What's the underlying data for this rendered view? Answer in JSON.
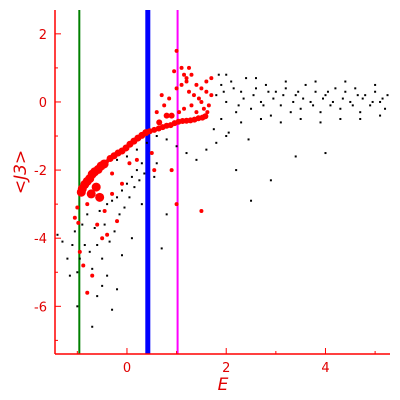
{
  "chart_data": {
    "type": "scatter",
    "xlabel": "E",
    "ylabel": "<J3>",
    "xlim": [
      -1.45,
      5.3
    ],
    "ylim": [
      -7.4,
      2.7
    ],
    "x_ticks": [
      0,
      2,
      4
    ],
    "y_ticks": [
      2,
      0,
      -2,
      -4,
      -6
    ],
    "x_tick_labels": [
      "0",
      "2",
      "4"
    ],
    "y_tick_labels": [
      "2",
      "0",
      "-2",
      "-4",
      "-6"
    ],
    "colors": {
      "axis": "#ff0000",
      "highlight_points": "#ff0000",
      "background_points": "#000000",
      "vline_green": "#008000",
      "vline_blue": "#0000ff",
      "vline_magenta": "#ff00ff"
    },
    "vertical_lines": [
      {
        "x": -0.96,
        "color": "#008000",
        "width": "thin"
      },
      {
        "x": 0.42,
        "color": "#0000ff",
        "width": "thick"
      },
      {
        "x": 1.02,
        "color": "#ff00ff",
        "width": "thin"
      }
    ],
    "highlight_points": [
      [
        -0.92,
        -2.65
      ],
      [
        -0.9,
        -2.55
      ],
      [
        -0.85,
        -2.42
      ],
      [
        -0.8,
        -2.33
      ],
      [
        -0.75,
        -2.25
      ],
      [
        -0.7,
        -2.12
      ],
      [
        -0.65,
        -2.05
      ],
      [
        -0.58,
        -1.98
      ],
      [
        -0.52,
        -1.88
      ],
      [
        -0.46,
        -1.82
      ],
      [
        -0.4,
        -1.74
      ],
      [
        -0.34,
        -1.66
      ],
      [
        -0.26,
        -1.58
      ],
      [
        -0.18,
        -1.5
      ],
      [
        -0.1,
        -1.44
      ],
      [
        -0.02,
        -1.35
      ],
      [
        0.06,
        -1.24
      ],
      [
        0.14,
        -1.15
      ],
      [
        0.22,
        -1.06
      ],
      [
        0.3,
        -0.98
      ],
      [
        0.38,
        -0.9
      ],
      [
        0.46,
        -0.86
      ],
      [
        0.55,
        -0.82
      ],
      [
        0.64,
        -0.78
      ],
      [
        0.72,
        -0.74
      ],
      [
        0.8,
        -0.7
      ],
      [
        0.88,
        -0.68
      ],
      [
        0.96,
        -0.62
      ],
      [
        1.04,
        -0.58
      ],
      [
        1.12,
        -0.56
      ],
      [
        1.2,
        -0.55
      ],
      [
        1.28,
        -0.54
      ],
      [
        1.36,
        -0.52
      ],
      [
        1.44,
        -0.48
      ],
      [
        1.52,
        -0.46
      ],
      [
        1.58,
        -0.42
      ],
      [
        1.62,
        -0.3
      ],
      [
        -1.05,
        -3.4
      ],
      [
        -1.0,
        -3.1
      ],
      [
        -0.98,
        -3.55
      ],
      [
        -0.8,
        -3.0
      ],
      [
        -0.72,
        -2.7
      ],
      [
        -0.62,
        -2.5
      ],
      [
        -0.95,
        -4.4
      ],
      [
        -0.88,
        -4.8
      ],
      [
        -0.7,
        -5.1
      ],
      [
        -0.8,
        -5.6
      ],
      [
        -0.6,
        -3.6
      ],
      [
        -0.5,
        -4.0
      ],
      [
        -0.4,
        -3.9
      ],
      [
        -0.2,
        -3.5
      ],
      [
        0.5,
        -1.5
      ],
      [
        0.55,
        -2.0
      ],
      [
        0.6,
        -0.3
      ],
      [
        0.7,
        0.2
      ],
      [
        0.75,
        -0.1
      ],
      [
        0.85,
        0.1
      ],
      [
        0.9,
        -0.4
      ],
      [
        1.0,
        0.4
      ],
      [
        1.05,
        -0.3
      ],
      [
        1.1,
        0.5
      ],
      [
        1.15,
        -0.2
      ],
      [
        1.2,
        0.6
      ],
      [
        1.25,
        0.3
      ],
      [
        1.3,
        -0.1
      ],
      [
        1.35,
        0.2
      ],
      [
        1.4,
        -0.3
      ],
      [
        1.45,
        0.1
      ],
      [
        1.5,
        0.0
      ],
      [
        1.55,
        -0.2
      ],
      [
        1.6,
        0.3
      ],
      [
        1.65,
        -0.1
      ],
      [
        1.7,
        0.2
      ],
      [
        1.1,
        1.0
      ],
      [
        1.2,
        0.7
      ],
      [
        1.3,
        0.8
      ],
      [
        1.4,
        0.5
      ],
      [
        1.5,
        0.4
      ],
      [
        1.6,
        0.6
      ],
      [
        1.7,
        0.7
      ],
      [
        1.0,
        1.5
      ],
      [
        0.95,
        0.9
      ],
      [
        1.15,
        0.8
      ],
      [
        1.25,
        1.0
      ],
      [
        0.8,
        -0.4
      ],
      [
        0.65,
        -0.6
      ],
      [
        1.5,
        -3.2
      ],
      [
        1.0,
        -3.0
      ],
      [
        0.9,
        -2.0
      ],
      [
        -0.3,
        -2.1
      ],
      [
        -0.1,
        -2.4
      ],
      [
        0.05,
        -1.8
      ],
      [
        0.2,
        -1.7
      ],
      [
        -0.55,
        -2.8
      ],
      [
        -0.45,
        -3.2
      ],
      [
        -0.3,
        -2.7
      ]
    ],
    "background_points": [
      [
        -1.4,
        -3.9
      ],
      [
        -1.3,
        -4.1
      ],
      [
        -1.2,
        -4.6
      ],
      [
        -1.15,
        -5.1
      ],
      [
        -1.1,
        -4.2
      ],
      [
        -1.05,
        -3.8
      ],
      [
        -1.0,
        -5.0
      ],
      [
        -0.95,
        -4.6
      ],
      [
        -0.9,
        -3.6
      ],
      [
        -0.85,
        -4.2
      ],
      [
        -0.8,
        -3.3
      ],
      [
        -0.75,
        -4.4
      ],
      [
        -0.7,
        -4.9
      ],
      [
        -0.65,
        -3.7
      ],
      [
        -0.6,
        -4.2
      ],
      [
        -0.55,
        -3.2
      ],
      [
        -0.5,
        -4.6
      ],
      [
        -0.45,
        -3.6
      ],
      [
        -0.4,
        -3.0
      ],
      [
        -0.35,
        -4.1
      ],
      [
        -0.3,
        -2.9
      ],
      [
        -0.25,
        -3.8
      ],
      [
        -0.2,
        -2.8
      ],
      [
        -0.15,
        -3.3
      ],
      [
        -0.1,
        -2.6
      ],
      [
        -0.05,
        -3.1
      ],
      [
        0.0,
        -2.4
      ],
      [
        0.05,
        -2.8
      ],
      [
        0.1,
        -2.2
      ],
      [
        0.15,
        -2.5
      ],
      [
        0.2,
        -2.0
      ],
      [
        0.25,
        -2.3
      ],
      [
        0.3,
        -1.8
      ],
      [
        0.35,
        -2.1
      ],
      [
        -1.0,
        -6.0
      ],
      [
        -0.7,
        -6.6
      ],
      [
        -0.6,
        -5.7
      ],
      [
        -0.5,
        -5.4
      ],
      [
        -0.4,
        -5.1
      ],
      [
        -0.2,
        -5.5
      ],
      [
        -0.3,
        -6.1
      ],
      [
        -0.1,
        -4.5
      ],
      [
        0.1,
        -4.0
      ],
      [
        0.3,
        -3.0
      ],
      [
        -0.2,
        -1.7
      ],
      [
        0.0,
        -1.6
      ],
      [
        0.2,
        -1.4
      ],
      [
        0.4,
        -1.2
      ],
      [
        0.6,
        -1.0
      ],
      [
        0.8,
        -1.1
      ],
      [
        1.0,
        -1.3
      ],
      [
        1.2,
        -1.5
      ],
      [
        1.4,
        -1.7
      ],
      [
        1.6,
        -1.4
      ],
      [
        1.8,
        -1.2
      ],
      [
        2.0,
        -1.0
      ],
      [
        0.7,
        -4.3
      ],
      [
        0.8,
        -3.3
      ],
      [
        2.2,
        -2.0
      ],
      [
        2.5,
        -2.9
      ],
      [
        2.9,
        -2.3
      ],
      [
        3.4,
        -1.6
      ],
      [
        4.0,
        -1.5
      ],
      [
        0.6,
        -1.8
      ],
      [
        0.55,
        -2.2
      ],
      [
        1.8,
        0.2
      ],
      [
        1.9,
        0.5
      ],
      [
        2.0,
        0.0
      ],
      [
        2.1,
        0.6
      ],
      [
        2.2,
        -0.3
      ],
      [
        2.3,
        0.3
      ],
      [
        2.4,
        0.7
      ],
      [
        2.5,
        -0.2
      ],
      [
        2.6,
        0.4
      ],
      [
        2.7,
        0.0
      ],
      [
        2.8,
        0.5
      ],
      [
        2.9,
        -0.4
      ],
      [
        3.0,
        0.3
      ],
      [
        3.1,
        -0.1
      ],
      [
        3.2,
        0.4
      ],
      [
        3.3,
        -0.3
      ],
      [
        3.4,
        0.2
      ],
      [
        3.5,
        -0.2
      ],
      [
        3.6,
        0.5
      ],
      [
        3.7,
        0.0
      ],
      [
        3.8,
        0.3
      ],
      [
        3.9,
        -0.3
      ],
      [
        4.0,
        0.2
      ],
      [
        4.1,
        -0.1
      ],
      [
        4.2,
        0.4
      ],
      [
        4.3,
        -0.2
      ],
      [
        4.4,
        0.3
      ],
      [
        4.5,
        0.0
      ],
      [
        4.6,
        0.4
      ],
      [
        4.7,
        -0.3
      ],
      [
        4.8,
        0.2
      ],
      [
        4.9,
        -0.1
      ],
      [
        5.0,
        0.3
      ],
      [
        5.1,
        0.0
      ],
      [
        5.2,
        -0.2
      ],
      [
        1.9,
        -0.5
      ],
      [
        2.3,
        -0.6
      ],
      [
        2.7,
        -0.5
      ],
      [
        3.1,
        -0.6
      ],
      [
        3.5,
        -0.5
      ],
      [
        3.9,
        -0.6
      ],
      [
        4.3,
        -0.5
      ],
      [
        4.7,
        -0.5
      ],
      [
        5.1,
        -0.4
      ],
      [
        2.0,
        0.8
      ],
      [
        2.6,
        0.7
      ],
      [
        3.2,
        0.6
      ],
      [
        3.8,
        0.6
      ],
      [
        4.4,
        0.6
      ],
      [
        5.0,
        0.5
      ],
      [
        1.75,
        -0.8
      ],
      [
        2.05,
        -0.9
      ],
      [
        2.45,
        -1.1
      ],
      [
        1.7,
        0.7
      ],
      [
        1.85,
        0.8
      ],
      [
        2.15,
        0.4
      ],
      [
        2.35,
        0.1
      ],
      [
        2.55,
        0.2
      ],
      [
        2.75,
        -0.1
      ],
      [
        2.95,
        0.1
      ],
      [
        3.15,
        0.2
      ],
      [
        3.35,
        0.0
      ],
      [
        3.55,
        0.1
      ],
      [
        3.75,
        -0.1
      ],
      [
        3.95,
        0.1
      ],
      [
        4.15,
        0.0
      ],
      [
        4.35,
        0.1
      ],
      [
        4.55,
        -0.1
      ],
      [
        4.75,
        0.1
      ],
      [
        4.95,
        0.0
      ],
      [
        5.15,
        0.1
      ],
      [
        1.95,
        0.3
      ],
      [
        2.25,
        -0.1
      ],
      [
        2.85,
        0.3
      ],
      [
        3.45,
        0.3
      ],
      [
        4.05,
        0.3
      ],
      [
        4.65,
        0.2
      ],
      [
        5.25,
        0.2
      ]
    ]
  }
}
